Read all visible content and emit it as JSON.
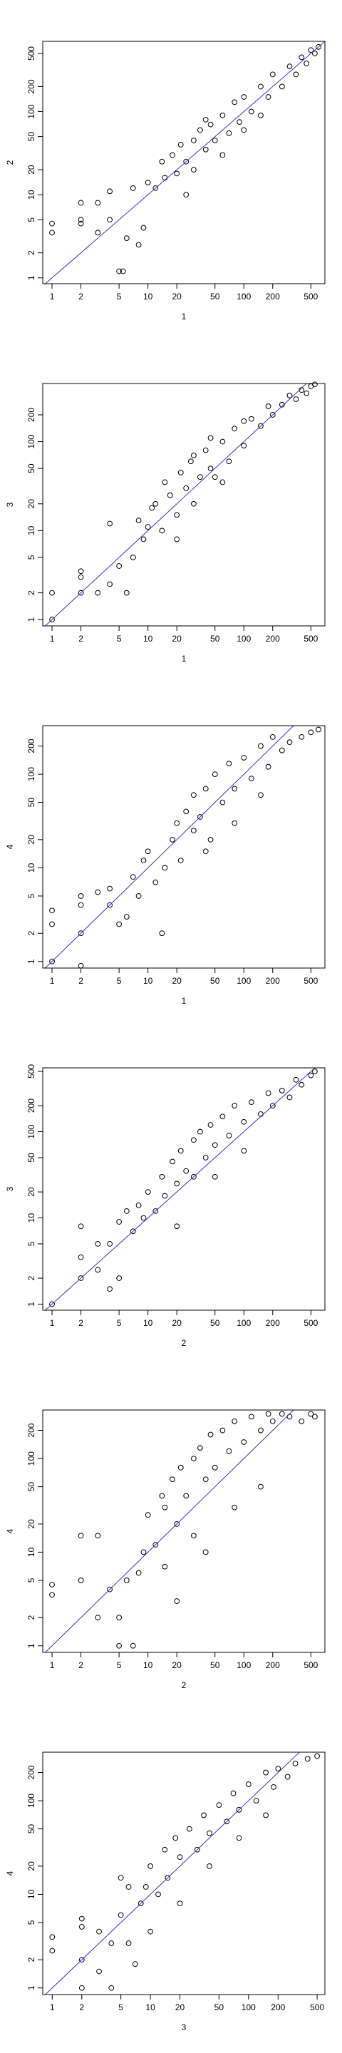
{
  "chart_data": [
    {
      "type": "scatter",
      "xlabel": "1",
      "ylabel": "2",
      "log": true,
      "color": "#000000",
      "xlim": [
        0.8,
        700
      ],
      "ylim": [
        0.85,
        700
      ],
      "xticks": [
        1,
        2,
        5,
        10,
        20,
        50,
        100,
        200,
        500
      ],
      "yticks": [
        1,
        2,
        5,
        10,
        20,
        50,
        100,
        200,
        500
      ],
      "abline": {
        "a": 0,
        "b": 1,
        "color": "#3333cc"
      },
      "x": [
        1,
        1,
        2,
        2,
        2,
        3,
        3,
        4,
        4,
        5,
        5.5,
        6,
        7,
        8,
        9,
        10,
        12,
        14,
        15,
        18,
        20,
        22,
        25,
        25,
        30,
        30,
        35,
        40,
        40,
        45,
        50,
        60,
        60,
        70,
        80,
        90,
        100,
        100,
        120,
        150,
        150,
        180,
        200,
        250,
        300,
        350,
        400,
        450,
        500,
        550,
        600
      ],
      "y": [
        4.5,
        3.5,
        8,
        5,
        4.5,
        3.5,
        8,
        11,
        5,
        1.2,
        1.2,
        3,
        12,
        2.5,
        4,
        14,
        12,
        25,
        16,
        30,
        18,
        40,
        25,
        10,
        45,
        20,
        60,
        35,
        80,
        70,
        45,
        90,
        30,
        55,
        130,
        75,
        150,
        60,
        100,
        200,
        90,
        150,
        280,
        200,
        350,
        280,
        450,
        380,
        550,
        500,
        600
      ]
    },
    {
      "type": "scatter",
      "xlabel": "1",
      "ylabel": "3",
      "log": true,
      "color": "#000000",
      "xlim": [
        0.8,
        700
      ],
      "ylim": [
        0.85,
        450
      ],
      "xticks": [
        1,
        2,
        5,
        10,
        20,
        50,
        100,
        200,
        500
      ],
      "yticks": [
        1,
        2,
        5,
        10,
        20,
        50,
        100,
        200
      ],
      "abline": {
        "a": 0,
        "b": 1,
        "color": "#3333cc"
      },
      "x": [
        1,
        1,
        2,
        2,
        2,
        3,
        4,
        4,
        5,
        6,
        7,
        8,
        9,
        10,
        11,
        12,
        14,
        15,
        17,
        20,
        22,
        25,
        28,
        30,
        35,
        40,
        45,
        50,
        60,
        70,
        80,
        100,
        120,
        150,
        180,
        200,
        250,
        300,
        350,
        400,
        450,
        500,
        550,
        30,
        60,
        100,
        20,
        45
      ],
      "y": [
        1,
        2,
        2,
        3.5,
        3,
        2,
        2.5,
        12,
        4,
        2,
        5,
        13,
        8,
        11,
        18,
        20,
        10,
        35,
        25,
        15,
        45,
        30,
        60,
        20,
        40,
        80,
        50,
        40,
        100,
        60,
        140,
        90,
        180,
        150,
        250,
        200,
        260,
        330,
        300,
        380,
        350,
        420,
        440,
        70,
        35,
        170,
        8,
        110
      ]
    },
    {
      "type": "scatter",
      "xlabel": "1",
      "ylabel": "4",
      "log": true,
      "color": "#000000",
      "xlim": [
        0.8,
        700
      ],
      "ylim": [
        0.85,
        330
      ],
      "xticks": [
        1,
        2,
        5,
        10,
        20,
        50,
        100,
        200,
        500
      ],
      "yticks": [
        1,
        2,
        5,
        10,
        20,
        50,
        100,
        200
      ],
      "abline": {
        "a": 0,
        "b": 1,
        "color": "#3333cc"
      },
      "x": [
        1,
        1,
        1,
        2,
        2,
        2,
        2,
        3,
        4,
        4,
        5,
        6,
        7,
        8,
        9,
        10,
        12,
        14,
        15,
        18,
        20,
        22,
        25,
        30,
        30,
        35,
        40,
        45,
        50,
        60,
        70,
        80,
        100,
        120,
        150,
        180,
        200,
        250,
        300,
        400,
        500,
        600,
        40,
        80,
        150
      ],
      "y": [
        1,
        2.5,
        3.5,
        0.9,
        2,
        5,
        4,
        5.5,
        6,
        4,
        2.5,
        3,
        8,
        5,
        12,
        15,
        7,
        2,
        10,
        20,
        30,
        12,
        40,
        25,
        60,
        35,
        70,
        20,
        100,
        50,
        130,
        70,
        150,
        90,
        200,
        120,
        250,
        180,
        220,
        250,
        280,
        300,
        15,
        30,
        60
      ]
    },
    {
      "type": "scatter",
      "xlabel": "2",
      "ylabel": "3",
      "log": true,
      "color": "#000000",
      "xlim": [
        0.8,
        700
      ],
      "ylim": [
        0.85,
        550
      ],
      "xticks": [
        1,
        2,
        5,
        10,
        20,
        50,
        100,
        200,
        500
      ],
      "yticks": [
        1,
        2,
        5,
        10,
        20,
        50,
        100,
        200,
        500
      ],
      "abline": {
        "a": 0,
        "b": 1,
        "color": "#3333cc"
      },
      "x": [
        1,
        2,
        2,
        2,
        3,
        3,
        4,
        4,
        5,
        5,
        6,
        7,
        8,
        9,
        10,
        12,
        14,
        15,
        18,
        20,
        22,
        25,
        30,
        30,
        35,
        40,
        45,
        50,
        60,
        70,
        80,
        100,
        120,
        150,
        180,
        200,
        250,
        300,
        350,
        400,
        500,
        550,
        20,
        50,
        100
      ],
      "y": [
        1,
        3.5,
        8,
        2,
        2.5,
        5,
        1.5,
        5,
        2,
        9,
        12,
        7,
        14,
        10,
        20,
        12,
        30,
        18,
        45,
        25,
        60,
        35,
        80,
        30,
        100,
        50,
        120,
        70,
        150,
        90,
        200,
        130,
        220,
        160,
        280,
        200,
        300,
        250,
        400,
        350,
        450,
        500,
        8,
        30,
        60
      ]
    },
    {
      "type": "scatter",
      "xlabel": "2",
      "ylabel": "4",
      "log": true,
      "color": "#000000",
      "xlim": [
        0.8,
        700
      ],
      "ylim": [
        0.85,
        330
      ],
      "xticks": [
        1,
        2,
        5,
        10,
        20,
        50,
        100,
        200,
        500
      ],
      "yticks": [
        1,
        2,
        5,
        10,
        20,
        50,
        100,
        200
      ],
      "abline": {
        "a": 0,
        "b": 1,
        "color": "#3333cc"
      },
      "x": [
        1,
        1,
        2,
        2,
        3,
        3,
        4,
        5,
        5,
        6,
        7,
        8,
        9,
        10,
        12,
        14,
        15,
        18,
        20,
        22,
        25,
        30,
        30,
        35,
        40,
        45,
        50,
        60,
        70,
        80,
        100,
        120,
        150,
        180,
        200,
        250,
        300,
        400,
        500,
        550,
        20,
        40,
        80,
        150,
        15
      ],
      "y": [
        3.5,
        4.5,
        15,
        5,
        15,
        2,
        4,
        1,
        2,
        5,
        1,
        6,
        10,
        25,
        12,
        40,
        30,
        60,
        20,
        80,
        40,
        100,
        15,
        130,
        60,
        180,
        80,
        200,
        120,
        250,
        150,
        280,
        200,
        300,
        250,
        300,
        280,
        250,
        300,
        280,
        3,
        10,
        30,
        50,
        7
      ]
    },
    {
      "type": "scatter",
      "xlabel": "3",
      "ylabel": "4",
      "log": true,
      "color": "#000000",
      "xlim": [
        0.8,
        600
      ],
      "ylim": [
        0.85,
        330
      ],
      "xticks": [
        1,
        2,
        5,
        10,
        20,
        50,
        100,
        200,
        500
      ],
      "yticks": [
        1,
        2,
        5,
        10,
        20,
        50,
        100,
        200
      ],
      "abline": {
        "a": 0,
        "b": 1,
        "color": "#3333cc"
      },
      "x": [
        1,
        1,
        2,
        2,
        2,
        2,
        3,
        3,
        4,
        4,
        5,
        5,
        6,
        7,
        8,
        9,
        10,
        12,
        14,
        15,
        18,
        20,
        25,
        30,
        35,
        40,
        50,
        60,
        70,
        80,
        100,
        120,
        150,
        180,
        200,
        250,
        300,
        400,
        500,
        20,
        40,
        80,
        150,
        10,
        6
      ],
      "y": [
        3.5,
        2.5,
        5.5,
        4.5,
        2,
        1,
        1.5,
        4,
        1,
        3,
        15,
        6,
        3,
        1.8,
        8,
        12,
        20,
        10,
        30,
        15,
        40,
        25,
        50,
        30,
        70,
        45,
        90,
        60,
        120,
        80,
        150,
        100,
        200,
        140,
        220,
        180,
        250,
        280,
        300,
        8,
        20,
        40,
        70,
        4,
        12
      ]
    }
  ]
}
